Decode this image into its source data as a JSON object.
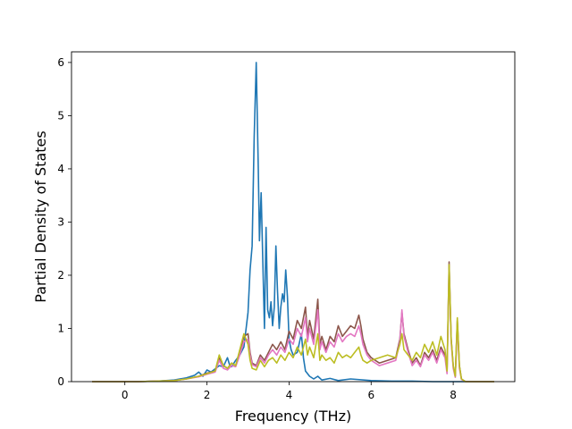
{
  "chart_data": {
    "type": "line",
    "title": "",
    "xlabel": "Frequency (THz)",
    "ylabel": "Partial Density of States",
    "xlim": [
      -1.3,
      9.5
    ],
    "ylim": [
      0,
      6.2
    ],
    "xticks": [
      0,
      2,
      4,
      6,
      8
    ],
    "yticks": [
      0,
      1,
      2,
      3,
      4,
      5,
      6
    ],
    "grid": false,
    "legend": "none",
    "series": [
      {
        "color": "#1f77b4",
        "points": [
          [
            -0.8,
            0
          ],
          [
            0.3,
            0
          ],
          [
            0.8,
            0.01
          ],
          [
            1.2,
            0.03
          ],
          [
            1.5,
            0.07
          ],
          [
            1.7,
            0.12
          ],
          [
            1.8,
            0.18
          ],
          [
            1.9,
            0.1
          ],
          [
            2.0,
            0.22
          ],
          [
            2.1,
            0.18
          ],
          [
            2.2,
            0.24
          ],
          [
            2.3,
            0.3
          ],
          [
            2.4,
            0.28
          ],
          [
            2.5,
            0.45
          ],
          [
            2.55,
            0.32
          ],
          [
            2.6,
            0.28
          ],
          [
            2.7,
            0.4
          ],
          [
            2.8,
            0.5
          ],
          [
            2.9,
            0.65
          ],
          [
            3.0,
            1.3
          ],
          [
            3.05,
            2.1
          ],
          [
            3.1,
            2.55
          ],
          [
            3.15,
            4.6
          ],
          [
            3.2,
            6.0
          ],
          [
            3.25,
            4.0
          ],
          [
            3.28,
            2.65
          ],
          [
            3.32,
            3.55
          ],
          [
            3.36,
            2.3
          ],
          [
            3.4,
            1.0
          ],
          [
            3.44,
            2.9
          ],
          [
            3.48,
            1.35
          ],
          [
            3.52,
            1.2
          ],
          [
            3.56,
            1.5
          ],
          [
            3.6,
            1.05
          ],
          [
            3.64,
            1.4
          ],
          [
            3.68,
            2.55
          ],
          [
            3.72,
            1.7
          ],
          [
            3.76,
            1.0
          ],
          [
            3.8,
            1.4
          ],
          [
            3.84,
            1.65
          ],
          [
            3.88,
            1.5
          ],
          [
            3.92,
            2.1
          ],
          [
            3.96,
            1.6
          ],
          [
            4.0,
            0.8
          ],
          [
            4.05,
            0.6
          ],
          [
            4.1,
            0.5
          ],
          [
            4.2,
            0.55
          ],
          [
            4.3,
            0.9
          ],
          [
            4.35,
            0.45
          ],
          [
            4.4,
            0.2
          ],
          [
            4.5,
            0.1
          ],
          [
            4.6,
            0.05
          ],
          [
            4.7,
            0.1
          ],
          [
            4.8,
            0.03
          ],
          [
            5.0,
            0.06
          ],
          [
            5.2,
            0.02
          ],
          [
            5.5,
            0.05
          ],
          [
            6.0,
            0.02
          ],
          [
            6.5,
            0.01
          ],
          [
            7.0,
            0.01
          ],
          [
            7.5,
            0
          ],
          [
            8.0,
            0
          ],
          [
            9.0,
            0
          ]
        ]
      },
      {
        "color": "#8c564b",
        "points": [
          [
            -0.8,
            0
          ],
          [
            0.3,
            0
          ],
          [
            0.8,
            0.01
          ],
          [
            1.2,
            0.02
          ],
          [
            1.5,
            0.05
          ],
          [
            1.8,
            0.1
          ],
          [
            2.0,
            0.16
          ],
          [
            2.2,
            0.2
          ],
          [
            2.3,
            0.45
          ],
          [
            2.4,
            0.3
          ],
          [
            2.5,
            0.25
          ],
          [
            2.6,
            0.35
          ],
          [
            2.7,
            0.3
          ],
          [
            2.8,
            0.55
          ],
          [
            2.9,
            0.85
          ],
          [
            3.0,
            0.9
          ],
          [
            3.05,
            0.55
          ],
          [
            3.1,
            0.35
          ],
          [
            3.2,
            0.3
          ],
          [
            3.3,
            0.5
          ],
          [
            3.4,
            0.4
          ],
          [
            3.5,
            0.55
          ],
          [
            3.6,
            0.7
          ],
          [
            3.7,
            0.6
          ],
          [
            3.8,
            0.75
          ],
          [
            3.9,
            0.6
          ],
          [
            4.0,
            0.95
          ],
          [
            4.1,
            0.8
          ],
          [
            4.2,
            1.15
          ],
          [
            4.3,
            1.0
          ],
          [
            4.4,
            1.4
          ],
          [
            4.45,
            0.85
          ],
          [
            4.5,
            1.15
          ],
          [
            4.6,
            0.8
          ],
          [
            4.7,
            1.55
          ],
          [
            4.75,
            0.7
          ],
          [
            4.8,
            0.85
          ],
          [
            4.9,
            0.6
          ],
          [
            5.0,
            0.85
          ],
          [
            5.1,
            0.75
          ],
          [
            5.2,
            1.05
          ],
          [
            5.3,
            0.85
          ],
          [
            5.4,
            0.95
          ],
          [
            5.5,
            1.05
          ],
          [
            5.6,
            1.0
          ],
          [
            5.7,
            1.25
          ],
          [
            5.75,
            1.05
          ],
          [
            5.8,
            0.8
          ],
          [
            5.9,
            0.55
          ],
          [
            6.0,
            0.45
          ],
          [
            6.2,
            0.35
          ],
          [
            6.4,
            0.4
          ],
          [
            6.6,
            0.45
          ],
          [
            6.7,
            0.8
          ],
          [
            6.75,
            1.3
          ],
          [
            6.8,
            0.9
          ],
          [
            6.9,
            0.6
          ],
          [
            7.0,
            0.35
          ],
          [
            7.1,
            0.45
          ],
          [
            7.2,
            0.3
          ],
          [
            7.3,
            0.55
          ],
          [
            7.4,
            0.45
          ],
          [
            7.5,
            0.6
          ],
          [
            7.6,
            0.4
          ],
          [
            7.7,
            0.65
          ],
          [
            7.8,
            0.5
          ],
          [
            7.85,
            0.2
          ],
          [
            7.9,
            2.25
          ],
          [
            7.95,
            0.8
          ],
          [
            8.0,
            0.3
          ],
          [
            8.05,
            0.1
          ],
          [
            8.1,
            1.15
          ],
          [
            8.15,
            0.3
          ],
          [
            8.2,
            0.05
          ],
          [
            8.3,
            0
          ],
          [
            9.0,
            0
          ]
        ]
      },
      {
        "color": "#e377c2",
        "points": [
          [
            -0.8,
            0
          ],
          [
            0.3,
            0
          ],
          [
            0.8,
            0.01
          ],
          [
            1.2,
            0.02
          ],
          [
            1.5,
            0.05
          ],
          [
            1.8,
            0.09
          ],
          [
            2.0,
            0.14
          ],
          [
            2.2,
            0.18
          ],
          [
            2.3,
            0.4
          ],
          [
            2.4,
            0.25
          ],
          [
            2.5,
            0.22
          ],
          [
            2.6,
            0.3
          ],
          [
            2.7,
            0.28
          ],
          [
            2.8,
            0.5
          ],
          [
            2.9,
            0.75
          ],
          [
            3.0,
            0.8
          ],
          [
            3.05,
            0.5
          ],
          [
            3.1,
            0.32
          ],
          [
            3.2,
            0.28
          ],
          [
            3.3,
            0.45
          ],
          [
            3.4,
            0.35
          ],
          [
            3.5,
            0.5
          ],
          [
            3.6,
            0.6
          ],
          [
            3.7,
            0.5
          ],
          [
            3.8,
            0.65
          ],
          [
            3.9,
            0.55
          ],
          [
            4.0,
            0.8
          ],
          [
            4.1,
            0.7
          ],
          [
            4.2,
            1.0
          ],
          [
            4.3,
            0.85
          ],
          [
            4.4,
            1.2
          ],
          [
            4.45,
            0.75
          ],
          [
            4.5,
            1.0
          ],
          [
            4.6,
            0.7
          ],
          [
            4.7,
            1.35
          ],
          [
            4.75,
            0.6
          ],
          [
            4.8,
            0.75
          ],
          [
            4.9,
            0.55
          ],
          [
            5.0,
            0.75
          ],
          [
            5.1,
            0.65
          ],
          [
            5.2,
            0.9
          ],
          [
            5.3,
            0.75
          ],
          [
            5.4,
            0.85
          ],
          [
            5.5,
            0.9
          ],
          [
            5.6,
            0.85
          ],
          [
            5.7,
            1.05
          ],
          [
            5.75,
            0.9
          ],
          [
            5.8,
            0.7
          ],
          [
            5.9,
            0.5
          ],
          [
            6.0,
            0.4
          ],
          [
            6.2,
            0.3
          ],
          [
            6.4,
            0.35
          ],
          [
            6.6,
            0.4
          ],
          [
            6.7,
            0.75
          ],
          [
            6.75,
            1.35
          ],
          [
            6.8,
            0.85
          ],
          [
            6.9,
            0.55
          ],
          [
            7.0,
            0.3
          ],
          [
            7.1,
            0.4
          ],
          [
            7.2,
            0.28
          ],
          [
            7.3,
            0.5
          ],
          [
            7.4,
            0.4
          ],
          [
            7.5,
            0.55
          ],
          [
            7.6,
            0.35
          ],
          [
            7.7,
            0.6
          ],
          [
            7.8,
            0.45
          ],
          [
            7.85,
            0.15
          ],
          [
            7.9,
            2.1
          ],
          [
            7.95,
            0.75
          ],
          [
            8.0,
            0.25
          ],
          [
            8.05,
            0.08
          ],
          [
            8.1,
            1.05
          ],
          [
            8.15,
            0.25
          ],
          [
            8.2,
            0.04
          ],
          [
            8.3,
            0
          ],
          [
            9.0,
            0
          ]
        ]
      },
      {
        "color": "#bcbd22",
        "points": [
          [
            -0.8,
            0
          ],
          [
            0.3,
            0
          ],
          [
            0.8,
            0.01
          ],
          [
            1.2,
            0.02
          ],
          [
            1.5,
            0.05
          ],
          [
            1.8,
            0.1
          ],
          [
            2.0,
            0.15
          ],
          [
            2.2,
            0.2
          ],
          [
            2.3,
            0.5
          ],
          [
            2.4,
            0.3
          ],
          [
            2.5,
            0.25
          ],
          [
            2.6,
            0.35
          ],
          [
            2.7,
            0.3
          ],
          [
            2.8,
            0.6
          ],
          [
            2.9,
            0.9
          ],
          [
            3.0,
            0.7
          ],
          [
            3.05,
            0.4
          ],
          [
            3.1,
            0.25
          ],
          [
            3.2,
            0.22
          ],
          [
            3.3,
            0.4
          ],
          [
            3.4,
            0.28
          ],
          [
            3.5,
            0.4
          ],
          [
            3.6,
            0.45
          ],
          [
            3.7,
            0.35
          ],
          [
            3.8,
            0.5
          ],
          [
            3.9,
            0.4
          ],
          [
            4.0,
            0.55
          ],
          [
            4.1,
            0.45
          ],
          [
            4.2,
            0.65
          ],
          [
            4.3,
            0.5
          ],
          [
            4.4,
            0.8
          ],
          [
            4.45,
            0.5
          ],
          [
            4.5,
            0.65
          ],
          [
            4.6,
            0.45
          ],
          [
            4.7,
            0.9
          ],
          [
            4.75,
            0.4
          ],
          [
            4.8,
            0.5
          ],
          [
            4.9,
            0.4
          ],
          [
            5.0,
            0.45
          ],
          [
            5.1,
            0.35
          ],
          [
            5.2,
            0.55
          ],
          [
            5.3,
            0.45
          ],
          [
            5.4,
            0.5
          ],
          [
            5.5,
            0.45
          ],
          [
            5.6,
            0.55
          ],
          [
            5.7,
            0.65
          ],
          [
            5.75,
            0.5
          ],
          [
            5.8,
            0.4
          ],
          [
            5.9,
            0.35
          ],
          [
            6.0,
            0.4
          ],
          [
            6.2,
            0.45
          ],
          [
            6.4,
            0.5
          ],
          [
            6.6,
            0.45
          ],
          [
            6.7,
            0.7
          ],
          [
            6.75,
            0.9
          ],
          [
            6.8,
            0.6
          ],
          [
            6.9,
            0.5
          ],
          [
            7.0,
            0.4
          ],
          [
            7.1,
            0.55
          ],
          [
            7.2,
            0.45
          ],
          [
            7.3,
            0.7
          ],
          [
            7.4,
            0.55
          ],
          [
            7.5,
            0.75
          ],
          [
            7.6,
            0.5
          ],
          [
            7.7,
            0.85
          ],
          [
            7.8,
            0.6
          ],
          [
            7.85,
            0.2
          ],
          [
            7.9,
            2.2
          ],
          [
            7.95,
            0.8
          ],
          [
            8.0,
            0.3
          ],
          [
            8.05,
            0.1
          ],
          [
            8.1,
            1.2
          ],
          [
            8.15,
            0.3
          ],
          [
            8.2,
            0.05
          ],
          [
            8.3,
            0
          ],
          [
            9.0,
            0
          ]
        ]
      }
    ]
  }
}
